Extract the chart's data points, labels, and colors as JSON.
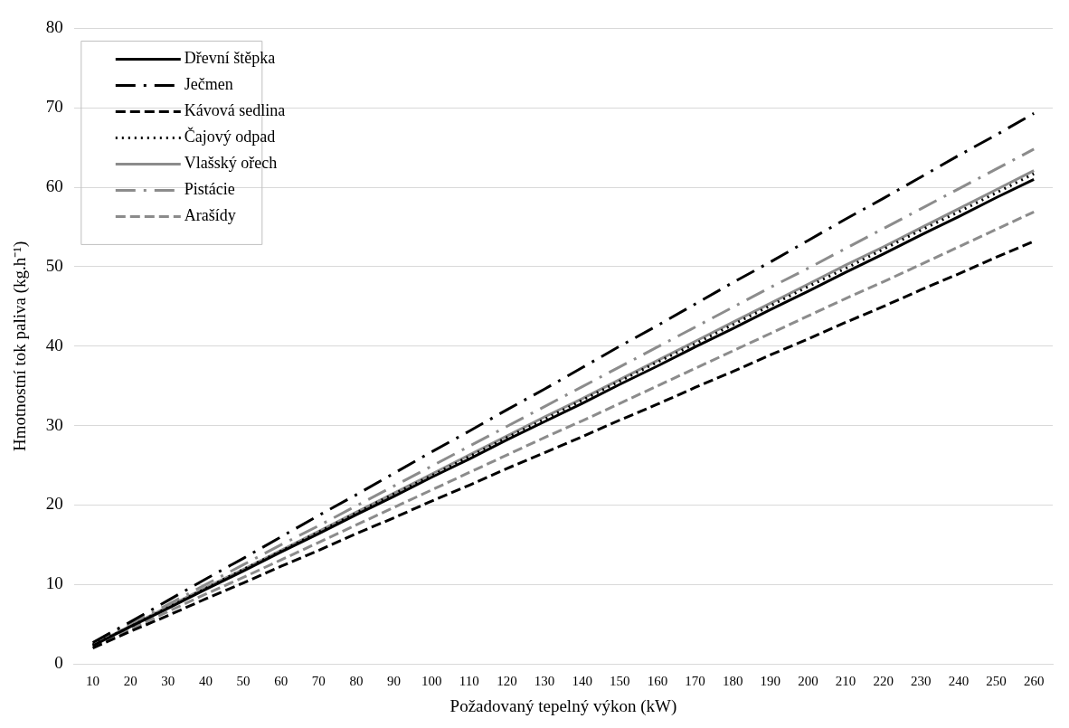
{
  "chart_data": {
    "type": "line",
    "xlabel": "Požadovaný tepelný výkon (kW)",
    "ylabel": "Hmotnostní tok paliva (kg.h⁻¹)",
    "categories": [
      "10",
      "20",
      "30",
      "40",
      "50",
      "60",
      "70",
      "80",
      "90",
      "100",
      "110",
      "120",
      "130",
      "140",
      "150",
      "160",
      "170",
      "180",
      "190",
      "200",
      "210",
      "220",
      "230",
      "240",
      "250",
      "260"
    ],
    "ylim": [
      0,
      80
    ],
    "yticks": [
      0,
      10,
      20,
      30,
      40,
      50,
      60,
      70,
      80
    ],
    "grid": "y",
    "legend": "top left",
    "marker": "none",
    "series": [
      {
        "name": "Dřevní štěpka",
        "color": "#000000",
        "line_style": "solid",
        "values": [
          2.3,
          4.7,
          7.0,
          9.4,
          11.7,
          14.1,
          16.4,
          18.8,
          21.1,
          23.5,
          25.8,
          28.2,
          30.5,
          32.8,
          35.2,
          37.5,
          39.9,
          42.2,
          44.6,
          46.9,
          49.3,
          51.6,
          54.0,
          56.3,
          58.7,
          61.0
        ]
      },
      {
        "name": "Ječmen",
        "color": "#000000",
        "line_style": "dashdot",
        "values": [
          2.7,
          5.3,
          8.0,
          10.7,
          13.3,
          16.0,
          18.7,
          21.3,
          24.0,
          26.7,
          29.3,
          32.0,
          34.6,
          37.3,
          40.0,
          42.6,
          45.3,
          48.0,
          50.6,
          53.3,
          56.0,
          58.6,
          61.3,
          64.0,
          66.6,
          69.3
        ]
      },
      {
        "name": "Kávová sedlina",
        "color": "#000000",
        "line_style": "dashed",
        "values": [
          2.0,
          4.1,
          6.1,
          8.2,
          10.2,
          12.3,
          14.3,
          16.4,
          18.4,
          20.5,
          22.5,
          24.6,
          26.6,
          28.6,
          30.7,
          32.7,
          34.8,
          36.8,
          38.9,
          40.9,
          43.0,
          45.0,
          47.1,
          49.1,
          51.2,
          53.2
        ]
      },
      {
        "name": "Čajový odpad",
        "color": "#000000",
        "line_style": "dotted",
        "values": [
          2.4,
          4.7,
          7.1,
          9.5,
          11.9,
          14.2,
          16.6,
          19.0,
          21.4,
          23.7,
          26.1,
          28.5,
          30.8,
          33.2,
          35.6,
          38.0,
          40.3,
          42.7,
          45.1,
          47.5,
          49.8,
          52.2,
          54.6,
          56.9,
          59.3,
          61.7
        ]
      },
      {
        "name": "Vlašský ořech",
        "color": "#8c8c8c",
        "line_style": "solid",
        "values": [
          2.4,
          4.8,
          7.2,
          9.6,
          11.9,
          14.3,
          16.7,
          19.1,
          21.5,
          23.9,
          26.3,
          28.7,
          31.1,
          33.4,
          35.8,
          38.2,
          40.6,
          43.0,
          45.4,
          47.8,
          50.2,
          52.5,
          54.9,
          57.3,
          59.7,
          62.1
        ]
      },
      {
        "name": "Pistácie",
        "color": "#8c8c8c",
        "line_style": "dashdot",
        "values": [
          2.5,
          5.0,
          7.5,
          10.0,
          12.5,
          15.0,
          17.4,
          19.9,
          22.4,
          24.9,
          27.4,
          29.9,
          32.4,
          34.9,
          37.4,
          39.9,
          42.4,
          44.9,
          47.4,
          49.8,
          52.3,
          54.8,
          57.3,
          59.8,
          62.3,
          64.8
        ]
      },
      {
        "name": "Arašídy",
        "color": "#8c8c8c",
        "line_style": "dashed",
        "values": [
          2.2,
          4.4,
          6.6,
          8.8,
          10.9,
          13.1,
          15.3,
          17.5,
          19.7,
          21.9,
          24.1,
          26.3,
          28.5,
          30.6,
          32.8,
          35.0,
          37.2,
          39.4,
          41.6,
          43.8,
          46.0,
          48.1,
          50.3,
          52.5,
          54.7,
          56.9
        ]
      }
    ]
  }
}
